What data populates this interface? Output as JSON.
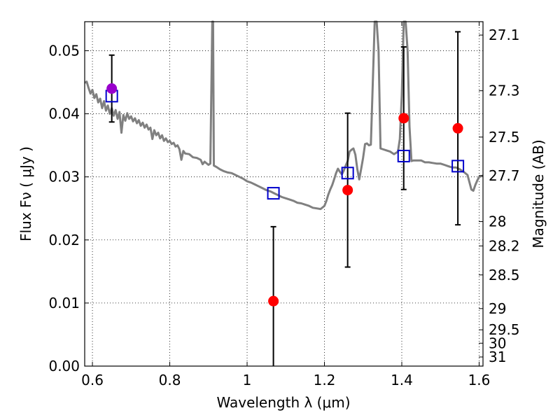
{
  "chart_data": {
    "type": "scatter",
    "title": "",
    "xlabel": "Wavelength  λ (μm)",
    "ylabel": "Flux  Fν  ( μJy )",
    "y2label": "Magnitude (AB)",
    "xlim": [
      0.58,
      1.61
    ],
    "ylim": [
      0.0,
      0.0546
    ],
    "grid": true,
    "colors": {
      "model": "#808080",
      "observed": "#ff0000",
      "synthetic": "#0000cc",
      "highlight": "#9900cc",
      "errorbar": "#000000"
    },
    "xticks": [
      {
        "value": 0.6,
        "label": "0.6"
      },
      {
        "value": 0.8,
        "label": "0.8"
      },
      {
        "value": 1.0,
        "label": "1"
      },
      {
        "value": 1.2,
        "label": "1.2"
      },
      {
        "value": 1.4,
        "label": "1.4"
      },
      {
        "value": 1.6,
        "label": "1.6"
      }
    ],
    "yticks": [
      {
        "value": 0.0,
        "label": "0.00"
      },
      {
        "value": 0.01,
        "label": "0.01"
      },
      {
        "value": 0.02,
        "label": "0.02"
      },
      {
        "value": 0.03,
        "label": "0.03"
      },
      {
        "value": 0.04,
        "label": "0.04"
      },
      {
        "value": 0.05,
        "label": "0.05"
      }
    ],
    "y2ticks": [
      {
        "mag": 27.1,
        "label": "27.1"
      },
      {
        "mag": 27.3,
        "label": "27.3"
      },
      {
        "mag": 27.5,
        "label": "27.5"
      },
      {
        "mag": 27.7,
        "label": "27.7"
      },
      {
        "mag": 28.0,
        "label": "28"
      },
      {
        "mag": 28.2,
        "label": "28.2"
      },
      {
        "mag": 28.5,
        "label": "28.5"
      },
      {
        "mag": 29.0,
        "label": "29"
      },
      {
        "mag": 29.5,
        "label": "29.5"
      },
      {
        "mag": 30.0,
        "label": "30"
      },
      {
        "mag": 31.0,
        "label": "31"
      }
    ],
    "observed": [
      {
        "x": 0.65,
        "y": 0.044,
        "err": 0.0053
      },
      {
        "x": 1.068,
        "y": 0.0103,
        "err": 0.0118
      },
      {
        "x": 1.26,
        "y": 0.0279,
        "err": 0.0122
      },
      {
        "x": 1.405,
        "y": 0.0393,
        "err": 0.0113
      },
      {
        "x": 1.545,
        "y": 0.0377,
        "err": 0.0153
      }
    ],
    "synthetic": [
      {
        "x": 0.65,
        "y": 0.0428
      },
      {
        "x": 1.068,
        "y": 0.0274
      },
      {
        "x": 1.26,
        "y": 0.0306
      },
      {
        "x": 1.405,
        "y": 0.0333
      },
      {
        "x": 1.545,
        "y": 0.0317
      }
    ],
    "model_spectrum": [
      [
        0.58,
        0.0449
      ],
      [
        0.585,
        0.0451
      ],
      [
        0.59,
        0.0441
      ],
      [
        0.595,
        0.0432
      ],
      [
        0.6,
        0.0438
      ],
      [
        0.605,
        0.0425
      ],
      [
        0.61,
        0.0431
      ],
      [
        0.615,
        0.0418
      ],
      [
        0.62,
        0.0424
      ],
      [
        0.625,
        0.0409
      ],
      [
        0.63,
        0.042
      ],
      [
        0.635,
        0.0405
      ],
      [
        0.64,
        0.0413
      ],
      [
        0.645,
        0.04
      ],
      [
        0.65,
        0.0409
      ],
      [
        0.655,
        0.0397
      ],
      [
        0.66,
        0.0406
      ],
      [
        0.665,
        0.0392
      ],
      [
        0.67,
        0.0403
      ],
      [
        0.675,
        0.037
      ],
      [
        0.68,
        0.0398
      ],
      [
        0.685,
        0.0389
      ],
      [
        0.69,
        0.0401
      ],
      [
        0.695,
        0.0392
      ],
      [
        0.7,
        0.0396
      ],
      [
        0.705,
        0.0388
      ],
      [
        0.71,
        0.0393
      ],
      [
        0.715,
        0.0385
      ],
      [
        0.72,
        0.039
      ],
      [
        0.725,
        0.0381
      ],
      [
        0.73,
        0.0386
      ],
      [
        0.735,
        0.0378
      ],
      [
        0.74,
        0.0383
      ],
      [
        0.745,
        0.0375
      ],
      [
        0.75,
        0.0378
      ],
      [
        0.755,
        0.036
      ],
      [
        0.76,
        0.0374
      ],
      [
        0.765,
        0.0366
      ],
      [
        0.77,
        0.037
      ],
      [
        0.775,
        0.0361
      ],
      [
        0.78,
        0.0366
      ],
      [
        0.785,
        0.0357
      ],
      [
        0.79,
        0.0361
      ],
      [
        0.795,
        0.0355
      ],
      [
        0.8,
        0.0357
      ],
      [
        0.805,
        0.0352
      ],
      [
        0.81,
        0.0354
      ],
      [
        0.815,
        0.0348
      ],
      [
        0.82,
        0.035
      ],
      [
        0.825,
        0.0344
      ],
      [
        0.83,
        0.0327
      ],
      [
        0.835,
        0.0341
      ],
      [
        0.84,
        0.0337
      ],
      [
        0.85,
        0.0336
      ],
      [
        0.86,
        0.0331
      ],
      [
        0.87,
        0.033
      ],
      [
        0.88,
        0.0327
      ],
      [
        0.885,
        0.032
      ],
      [
        0.89,
        0.0324
      ],
      [
        0.9,
        0.0319
      ],
      [
        0.905,
        0.0321
      ],
      [
        0.91,
        0.0546
      ],
      [
        0.912,
        0.0546
      ],
      [
        0.914,
        0.0318
      ],
      [
        0.92,
        0.0316
      ],
      [
        0.93,
        0.0312
      ],
      [
        0.94,
        0.0309
      ],
      [
        0.95,
        0.0307
      ],
      [
        0.96,
        0.0306
      ],
      [
        0.97,
        0.0303
      ],
      [
        0.98,
        0.03
      ],
      [
        0.99,
        0.0297
      ],
      [
        1.0,
        0.0293
      ],
      [
        1.01,
        0.0291
      ],
      [
        1.02,
        0.0288
      ],
      [
        1.03,
        0.0285
      ],
      [
        1.04,
        0.0282
      ],
      [
        1.05,
        0.0279
      ],
      [
        1.06,
        0.0277
      ],
      [
        1.07,
        0.0274
      ],
      [
        1.08,
        0.0271
      ],
      [
        1.09,
        0.0268
      ],
      [
        1.1,
        0.0266
      ],
      [
        1.11,
        0.0264
      ],
      [
        1.12,
        0.0262
      ],
      [
        1.13,
        0.0259
      ],
      [
        1.14,
        0.0258
      ],
      [
        1.15,
        0.0256
      ],
      [
        1.16,
        0.0254
      ],
      [
        1.17,
        0.0251
      ],
      [
        1.18,
        0.025
      ],
      [
        1.19,
        0.0249
      ],
      [
        1.2,
        0.0254
      ],
      [
        1.205,
        0.0262
      ],
      [
        1.21,
        0.0272
      ],
      [
        1.215,
        0.028
      ],
      [
        1.22,
        0.0287
      ],
      [
        1.225,
        0.0296
      ],
      [
        1.23,
        0.0306
      ],
      [
        1.235,
        0.0313
      ],
      [
        1.24,
        0.0308
      ],
      [
        1.245,
        0.0304
      ],
      [
        1.25,
        0.031
      ],
      [
        1.255,
        0.0318
      ],
      [
        1.26,
        0.0325
      ],
      [
        1.265,
        0.034
      ],
      [
        1.27,
        0.0343
      ],
      [
        1.275,
        0.0345
      ],
      [
        1.28,
        0.0335
      ],
      [
        1.285,
        0.0312
      ],
      [
        1.29,
        0.0296
      ],
      [
        1.295,
        0.0313
      ],
      [
        1.3,
        0.033
      ],
      [
        1.305,
        0.0352
      ],
      [
        1.31,
        0.0353
      ],
      [
        1.315,
        0.035
      ],
      [
        1.32,
        0.0351
      ],
      [
        1.325,
        0.045
      ],
      [
        1.33,
        0.0546
      ],
      [
        1.335,
        0.0546
      ],
      [
        1.34,
        0.05
      ],
      [
        1.345,
        0.0345
      ],
      [
        1.35,
        0.0344
      ],
      [
        1.36,
        0.0342
      ],
      [
        1.37,
        0.034
      ],
      [
        1.38,
        0.0336
      ],
      [
        1.39,
        0.034
      ],
      [
        1.395,
        0.036
      ],
      [
        1.4,
        0.043
      ],
      [
        1.405,
        0.0546
      ],
      [
        1.41,
        0.0546
      ],
      [
        1.415,
        0.05
      ],
      [
        1.42,
        0.038
      ],
      [
        1.425,
        0.0325
      ],
      [
        1.43,
        0.0326
      ],
      [
        1.44,
        0.0326
      ],
      [
        1.45,
        0.0326
      ],
      [
        1.46,
        0.0323
      ],
      [
        1.47,
        0.0323
      ],
      [
        1.48,
        0.0322
      ],
      [
        1.49,
        0.0321
      ],
      [
        1.5,
        0.0321
      ],
      [
        1.51,
        0.0319
      ],
      [
        1.52,
        0.0317
      ],
      [
        1.53,
        0.0315
      ],
      [
        1.54,
        0.0315
      ],
      [
        1.55,
        0.0312
      ],
      [
        1.56,
        0.0308
      ],
      [
        1.57,
        0.0303
      ],
      [
        1.58,
        0.028
      ],
      [
        1.585,
        0.0278
      ],
      [
        1.59,
        0.0287
      ],
      [
        1.595,
        0.0294
      ],
      [
        1.6,
        0.03
      ],
      [
        1.61,
        0.0302
      ]
    ]
  }
}
